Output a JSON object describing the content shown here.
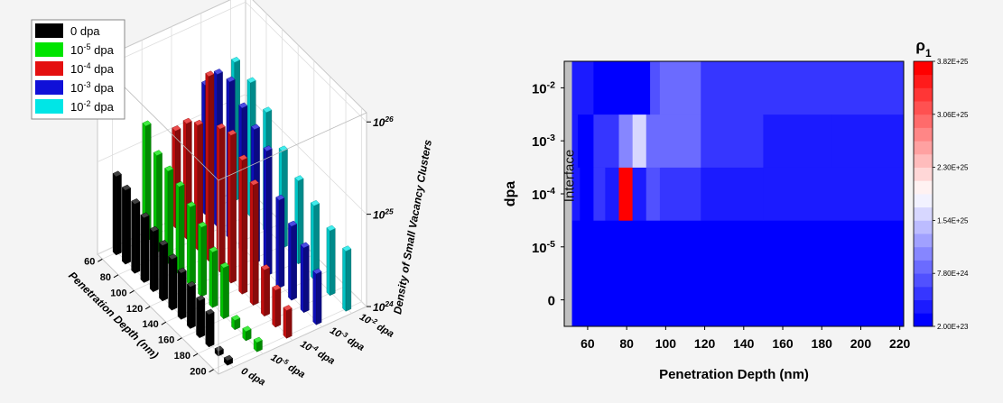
{
  "chart_data": [
    {
      "type": "bar3d",
      "legend": {
        "placement": "top-left",
        "entries": [
          {
            "base": "0",
            "exp": "",
            "unit": "dpa",
            "color": "#000000"
          },
          {
            "base": "10",
            "exp": "-5",
            "unit": "dpa",
            "color": "#00e400"
          },
          {
            "base": "10",
            "exp": "-4",
            "unit": "dpa",
            "color": "#e41010"
          },
          {
            "base": "10",
            "exp": "-3",
            "unit": "dpa",
            "color": "#1010d8"
          },
          {
            "base": "10",
            "exp": "-2",
            "unit": "dpa",
            "color": "#00e6e6"
          }
        ]
      },
      "xlabel": "Penetration Depth (nm)",
      "x_ticks": [
        "60",
        "80",
        "100",
        "120",
        "140",
        "160",
        "180",
        "200"
      ],
      "y_ticks": [
        {
          "base": "0",
          "exp": "",
          "unit": "dpa"
        },
        {
          "base": "10",
          "exp": "-5",
          "unit": "dpa"
        },
        {
          "base": "10",
          "exp": "-4",
          "unit": "dpa"
        },
        {
          "base": "10",
          "exp": "-3",
          "unit": "dpa"
        },
        {
          "base": "10",
          "exp": "-2",
          "unit": "dpa"
        }
      ],
      "zlabel": "Density of Small Vacancy Clusters",
      "z_ticks": [
        {
          "base": "10",
          "exp": "24"
        },
        {
          "base": "10",
          "exp": "25"
        },
        {
          "base": "10",
          "exp": "26"
        }
      ],
      "zscale": "log",
      "zlim_log10": [
        24,
        26.1
      ],
      "series": [
        {
          "values_log10": [
            24.85,
            24.8,
            24.75,
            24.7,
            24.65,
            24.6,
            24.55,
            24.5,
            24.45,
            24.4,
            24.35,
            24.05,
            24.05
          ]
        },
        {
          "values_log10": [
            25.25,
            25.05,
            25.0,
            24.95,
            24.85,
            24.75,
            24.6,
            24.55,
            24.1,
            24.1,
            24.1
          ]
        },
        {
          "values_log10": [
            25.05,
            25.25,
            25.35,
            26.0,
            25.55,
            25.6,
            25.45,
            25.3,
            24.5,
            24.4,
            24.3
          ]
        },
        {
          "values_log10": [
            25.4,
            25.65,
            25.7,
            25.55,
            25.45,
            25.35,
            24.95,
            24.8,
            24.7,
            24.55
          ]
        },
        {
          "values_log10": [
            25.5,
            25.45,
            25.3,
            25.05,
            24.9,
            24.8,
            24.7,
            24.65
          ]
        }
      ]
    },
    {
      "type": "heatmap",
      "xlabel": "Penetration Depth (nm)",
      "ylabel": "dpa",
      "x_ticks": [
        "60",
        "80",
        "100",
        "120",
        "140",
        "160",
        "180",
        "200",
        "220"
      ],
      "xlim": [
        48,
        222
      ],
      "y_ticks": [
        {
          "base": "0",
          "exp": ""
        },
        {
          "base": "10",
          "exp": "-5"
        },
        {
          "base": "10",
          "exp": "-4"
        },
        {
          "base": "10",
          "exp": "-3"
        },
        {
          "base": "10",
          "exp": "-2"
        }
      ],
      "annotation": "Interface",
      "interface_until": 52,
      "colorbar": {
        "title_base": "ρ",
        "title_sub": "1",
        "ticks": [
          "2.00E+23",
          "7.80E+24",
          "1.54E+25",
          "2.30E+25",
          "3.06E+25",
          "3.82E+25"
        ],
        "min": 2e+23,
        "max": 3.82e+25,
        "low_color": "#0000ff",
        "mid_color": "#ffffff",
        "high_color": "#ff0000",
        "levels": 20
      },
      "rows": [
        {
          "edges": [
            52,
            84,
            222
          ],
          "values": [
            1.6e+24,
            1e+24
          ]
        },
        {
          "edges": [
            52,
            56,
            72,
            222
          ],
          "values": [
            2e+24,
            1.4e+24,
            1e+24
          ]
        },
        {
          "edges": [
            52,
            56,
            63,
            69,
            76,
            83,
            90,
            97,
            118,
            150,
            222
          ],
          "values": [
            2.5e+24,
            2e+23,
            4e+24,
            3e+24,
            3.82e+25,
            3.6e+24,
            7.6e+24,
            4e+24,
            3.2e+24,
            2.4e+24
          ]
        },
        {
          "edges": [
            52,
            55,
            63,
            76,
            83,
            90,
            97,
            118,
            150,
            185,
            222
          ],
          "values": [
            2.4e+24,
            2e+23,
            5.4e+24,
            1e+25,
            1.6e+25,
            9e+24,
            8e+24,
            4.6e+24,
            3.4e+24,
            2.4e+24
          ]
        },
        {
          "edges": [
            52,
            63,
            92,
            97,
            118,
            222
          ],
          "values": [
            2.4e+24,
            2e+23,
            6.6e+24,
            9.6e+24,
            4.6e+24
          ]
        }
      ]
    }
  ]
}
